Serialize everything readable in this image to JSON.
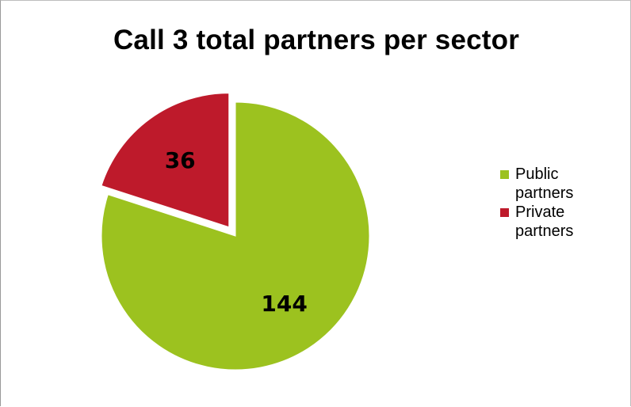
{
  "chart_data": {
    "type": "pie",
    "title": "Call 3 total partners per sector",
    "slices": [
      {
        "name": "Public partners",
        "value": 144,
        "color": "#9cc21f"
      },
      {
        "name": "Private partners",
        "value": 36,
        "color": "#be1a2b",
        "exploded": true
      }
    ],
    "legend_position": "right"
  }
}
